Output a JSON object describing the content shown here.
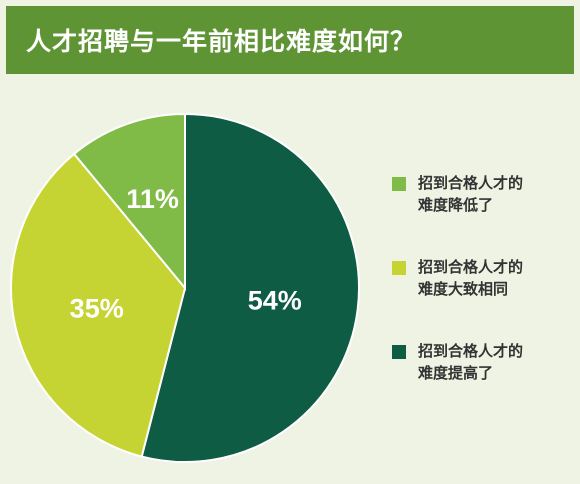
{
  "title": "人才招聘与一年前相比难度如何？",
  "colors": {
    "header": "#5e9434",
    "background": "#eef3e4"
  },
  "chart_data": {
    "type": "pie",
    "title": "人才招聘与一年前相比难度如何？",
    "slices": [
      {
        "label": "招到合格人才的\n难度降低了",
        "value": 11,
        "display": "11%",
        "color": "#7fbb46"
      },
      {
        "label": "招到合格人才的\n难度大致相同",
        "value": 35,
        "display": "35%",
        "color": "#c6d433"
      },
      {
        "label": "招到合格人才的\n难度提高了",
        "value": 54,
        "display": "54%",
        "color": "#0f5c44"
      }
    ],
    "legend_position": "right"
  }
}
